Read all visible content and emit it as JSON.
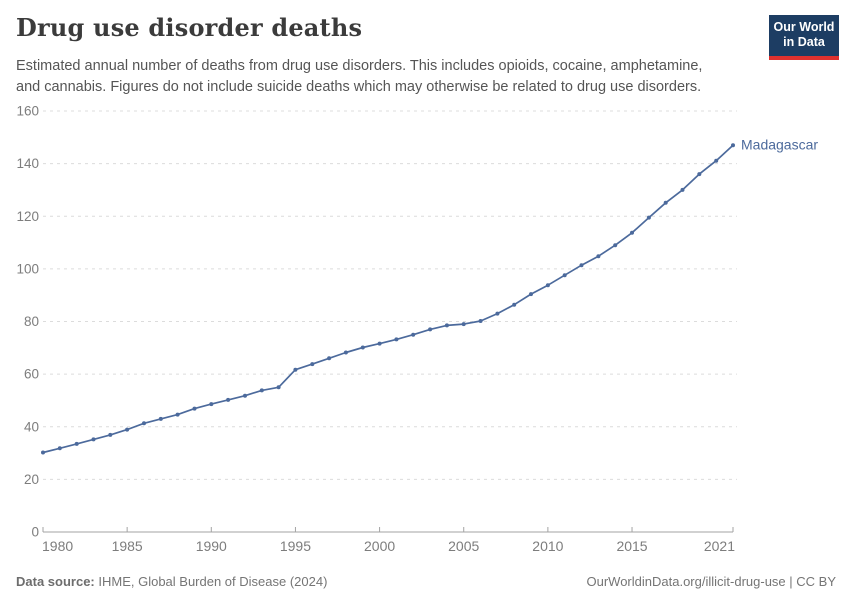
{
  "header": {
    "title": "Drug use disorder deaths",
    "subtitle": "Estimated annual number of deaths from drug use disorders. This includes opioids, cocaine, amphetamine,\nand cannabis. Figures do not include suicide deaths which may otherwise be related to drug use disorders.",
    "logo": {
      "text": "Our World\nin Data",
      "bg_color": "#1d3d63",
      "stripe_color": "#e0312e"
    }
  },
  "chart_data": {
    "type": "line",
    "title": "Drug use disorder deaths",
    "xlabel": "",
    "ylabel": "",
    "xlim": [
      1980,
      2021
    ],
    "ylim": [
      0,
      160
    ],
    "xticks": [
      1980,
      1985,
      1990,
      1995,
      2000,
      2005,
      2010,
      2015,
      2021
    ],
    "yticks": [
      0,
      20,
      40,
      60,
      80,
      100,
      120,
      140,
      160
    ],
    "grid": "horizontal-dashed",
    "legend_position": "end-of-line-label",
    "x": [
      1980,
      1981,
      1982,
      1983,
      1984,
      1985,
      1986,
      1987,
      1988,
      1989,
      1990,
      1991,
      1992,
      1993,
      1994,
      1995,
      1996,
      1997,
      1998,
      1999,
      2000,
      2001,
      2002,
      2003,
      2004,
      2005,
      2006,
      2007,
      2008,
      2009,
      2010,
      2011,
      2012,
      2013,
      2014,
      2015,
      2016,
      2017,
      2018,
      2019,
      2020,
      2021
    ],
    "series": [
      {
        "name": "Madagascar",
        "color": "#4c6a9c",
        "values": [
          30.2,
          31.8,
          33.5,
          35.2,
          36.9,
          38.9,
          41.3,
          43,
          44.6,
          46.9,
          48.6,
          50.2,
          51.8,
          53.8,
          55,
          61.7,
          63.8,
          66,
          68.2,
          70.1,
          71.6,
          73.2,
          75,
          77,
          78.5,
          79,
          80.2,
          83,
          86.4,
          90.4,
          93.8,
          97.6,
          101.4,
          104.8,
          109,
          113.7,
          119.5,
          125.1,
          130,
          136,
          141.1,
          147
        ]
      }
    ],
    "colors": {
      "grid": "#dcdcdc",
      "axis": "#a3a3a3",
      "tick_label": "#7d7d7d"
    }
  },
  "footer": {
    "source_label": "Data source:",
    "source_text": " IHME, Global Burden of Disease (2024)",
    "right_text": "OurWorldinData.org/illicit-drug-use | CC BY"
  }
}
